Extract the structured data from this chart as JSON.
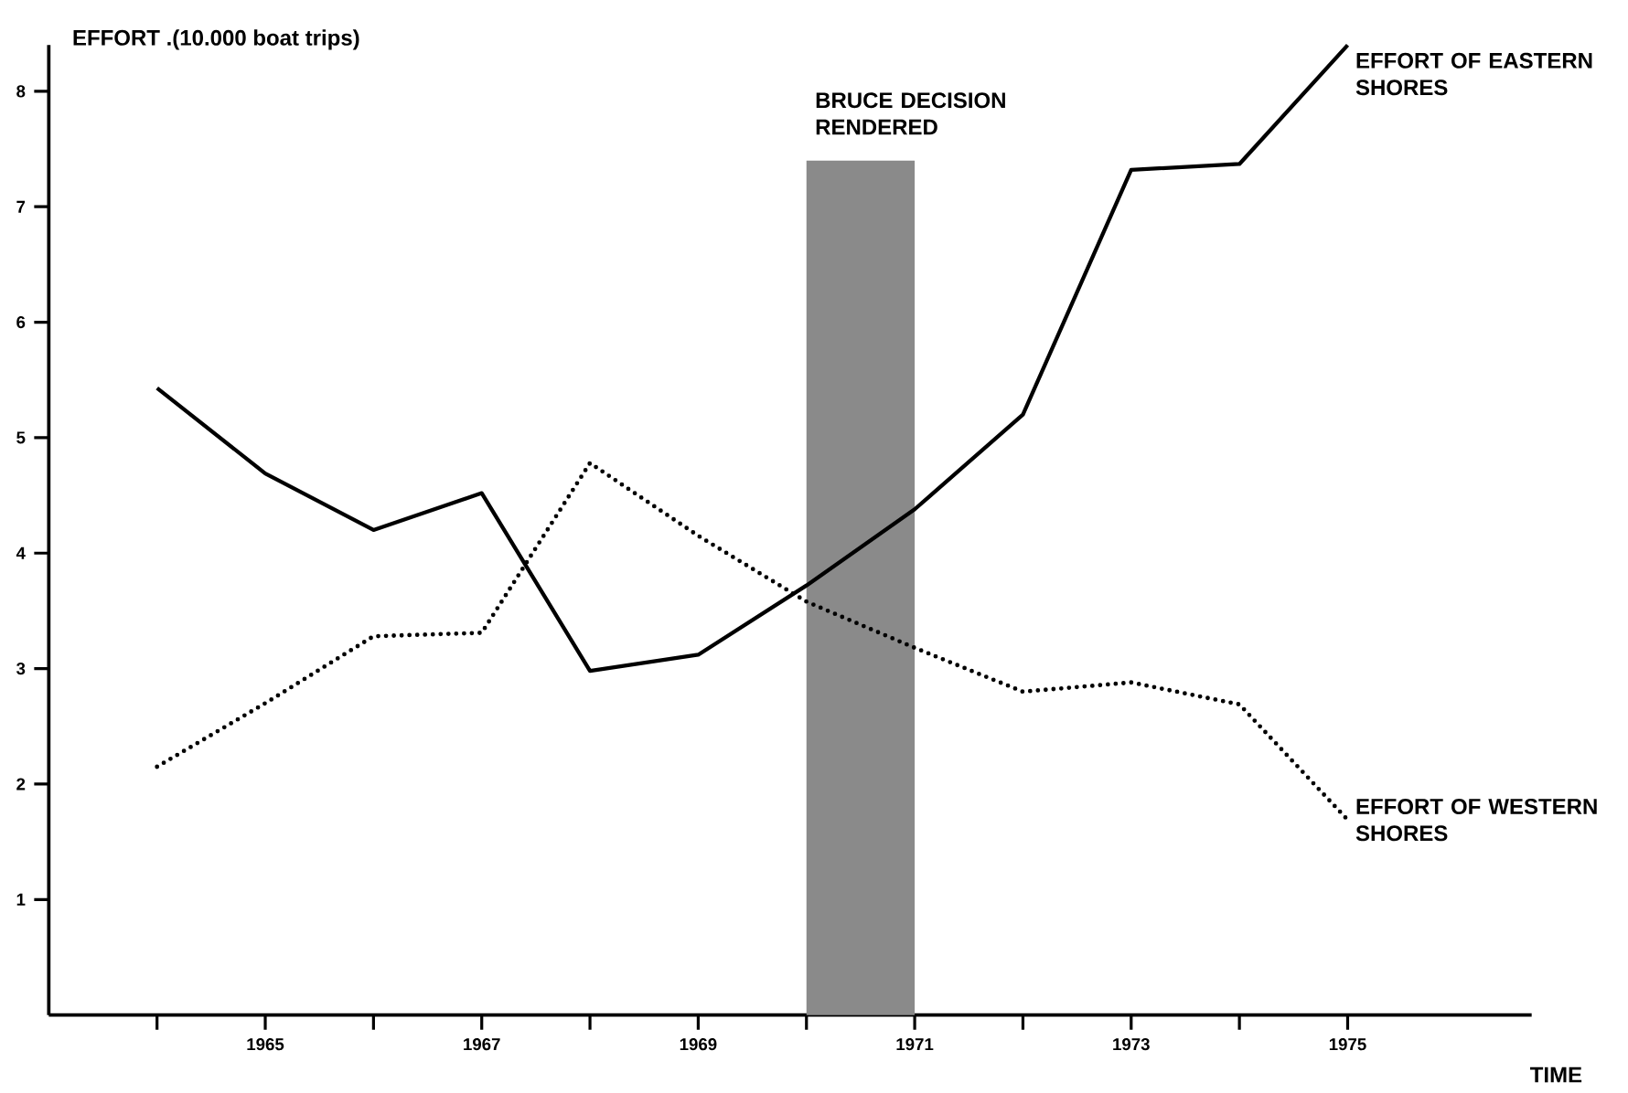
{
  "chart_data": {
    "type": "line",
    "xlabel": "TIME",
    "ylabel": "EFFORT .(10.000 boat trips)",
    "x": [
      1964,
      1965,
      1966,
      1967,
      1968,
      1969,
      1970,
      1971,
      1972,
      1973,
      1974,
      1975
    ],
    "series": [
      {
        "name": "EFFORT OF EASTERN SHORES",
        "color": "#000000",
        "line_style": "solid",
        "values": [
          5.43,
          4.69,
          4.2,
          4.52,
          2.98,
          3.12,
          3.72,
          4.38,
          5.2,
          7.32,
          7.37,
          8.4
        ]
      },
      {
        "name": "EFFORT OF WESTERN SHORES",
        "color": "#000000",
        "line_style": "dotted",
        "values": [
          2.15,
          2.7,
          3.28,
          3.31,
          4.78,
          4.15,
          3.58,
          3.18,
          2.8,
          2.88,
          2.69,
          1.69
        ]
      }
    ],
    "marker": "none",
    "xlim": [
      1963,
      1976.7
    ],
    "ylim": [
      0,
      8.4
    ],
    "xticks": [
      {
        "value": 1964,
        "label": null
      },
      1965,
      {
        "value": 1966,
        "label": null
      },
      1967,
      {
        "value": 1968,
        "label": null
      },
      1969,
      {
        "value": 1970,
        "label": null
      },
      1971,
      {
        "value": 1972,
        "label": null
      },
      1973,
      {
        "value": 1974,
        "label": null
      },
      1975
    ],
    "yticks": [
      1,
      2,
      3,
      4,
      5,
      6,
      7,
      8
    ],
    "bands": [
      {
        "axis": "x",
        "from": 1970,
        "to": 1971,
        "label": "BRUCE DECISION RENDERED",
        "color": "#8a8a8a"
      }
    ]
  }
}
